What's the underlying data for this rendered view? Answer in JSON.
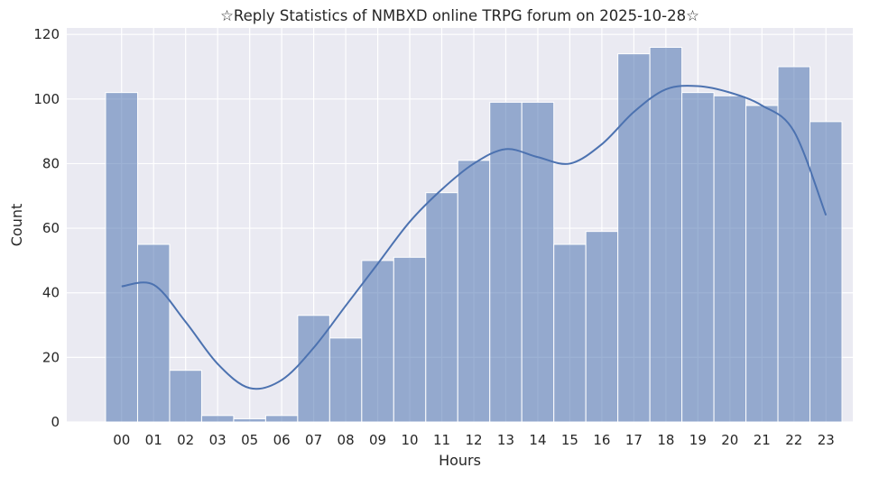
{
  "chart_data": {
    "type": "bar",
    "title": "☆Reply Statistics of NMBXD online TRPG forum on 2025-10-28☆",
    "xlabel": "Hours",
    "ylabel": "Count",
    "categories": [
      "00",
      "01",
      "02",
      "03",
      "05",
      "06",
      "07",
      "08",
      "09",
      "10",
      "11",
      "12",
      "13",
      "14",
      "15",
      "16",
      "17",
      "18",
      "19",
      "20",
      "21",
      "22",
      "23"
    ],
    "values": [
      102,
      55,
      16,
      2,
      1,
      2,
      33,
      26,
      50,
      51,
      71,
      81,
      99,
      99,
      55,
      59,
      114,
      116,
      102,
      101,
      98,
      110,
      93
    ],
    "yticks": [
      0,
      20,
      40,
      60,
      80,
      100,
      120
    ],
    "ylim": [
      0,
      122
    ],
    "grid": true,
    "kde": {
      "x": [
        "00",
        "01",
        "02",
        "03",
        "05",
        "06",
        "07",
        "08",
        "09",
        "10",
        "11",
        "12",
        "13",
        "14",
        "15",
        "16",
        "17",
        "18",
        "19",
        "20",
        "21",
        "22",
        "23"
      ],
      "y": [
        42,
        42.5,
        31,
        18,
        10.5,
        13,
        23,
        36,
        49,
        62,
        72,
        80,
        84.5,
        82,
        80,
        86,
        96,
        103,
        104,
        102,
        98,
        90,
        64
      ]
    },
    "colors": {
      "bar_fill": "#4c72b0",
      "bar_opacity": 0.55,
      "kde_line": "#4c72b0",
      "plot_bg": "#eaeaf2",
      "grid": "#ffffff"
    }
  }
}
